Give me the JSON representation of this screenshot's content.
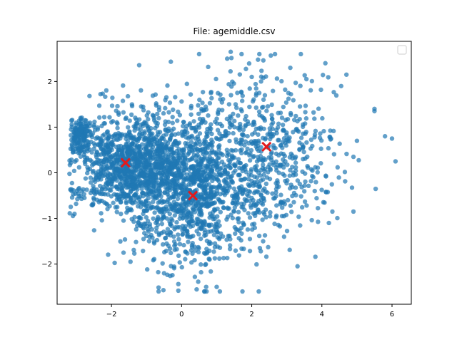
{
  "chart_data": {
    "type": "scatter",
    "title": "File: agemiddle.csv",
    "xlabel": "",
    "ylabel": "",
    "xlim": [
      -3.55,
      6.55
    ],
    "ylim": [
      -2.88,
      2.88
    ],
    "xticks": [
      -2,
      0,
      2,
      4,
      6
    ],
    "yticks": [
      -2,
      -1,
      0,
      1,
      2
    ],
    "xtick_labels": [
      "−2",
      "0",
      "2",
      "4",
      "6"
    ],
    "ytick_labels": [
      "−2",
      "−1",
      "0",
      "1",
      "2"
    ],
    "grid": false,
    "legend": {
      "placement": "top-right",
      "entries": []
    },
    "series": [
      {
        "kind": "points",
        "color": "#1f77b4",
        "alpha": 0.7,
        "clusters": [
          {
            "cx": -1.5,
            "cy": 0.2,
            "sx": 0.75,
            "sy": 0.55,
            "n": 1100
          },
          {
            "cx": 0.2,
            "cy": -0.3,
            "sx": 0.8,
            "sy": 0.85,
            "n": 1100
          },
          {
            "cx": 2.3,
            "cy": 0.4,
            "sx": 1.0,
            "sy": 0.9,
            "n": 650
          },
          {
            "cx": -2.9,
            "cy": 0.8,
            "sx": 0.12,
            "sy": 0.22,
            "n": 120
          }
        ],
        "outliers": [
          [
            5.5,
            1.4
          ],
          [
            5.8,
            0.8
          ],
          [
            6.0,
            0.75
          ],
          [
            6.1,
            0.25
          ],
          [
            5.0,
            0.7
          ],
          [
            4.9,
            0.35
          ],
          [
            4.9,
            -0.85
          ],
          [
            4.3,
            -0.85
          ],
          [
            3.4,
            2.6
          ],
          [
            2.0,
            2.1
          ],
          [
            0.5,
            2.6
          ],
          [
            1.4,
            2.65
          ],
          [
            1.3,
            2.5
          ],
          [
            1.0,
            -2.5
          ],
          [
            -0.5,
            -2.2
          ],
          [
            2.2,
            -2.6
          ],
          [
            3.1,
            2.3
          ],
          [
            4.1,
            2.4
          ],
          [
            4.7,
            2.15
          ],
          [
            4.55,
            1.9
          ],
          [
            5.5,
            1.35
          ],
          [
            4.2,
            -1.1
          ],
          [
            0.7,
            -2.5
          ]
        ]
      },
      {
        "kind": "centroids",
        "marker": "x",
        "color": "#e31a1c",
        "points": [
          {
            "x": -1.6,
            "y": 0.22
          },
          {
            "x": 0.32,
            "y": -0.5
          },
          {
            "x": 2.42,
            "y": 0.57
          }
        ]
      }
    ]
  }
}
